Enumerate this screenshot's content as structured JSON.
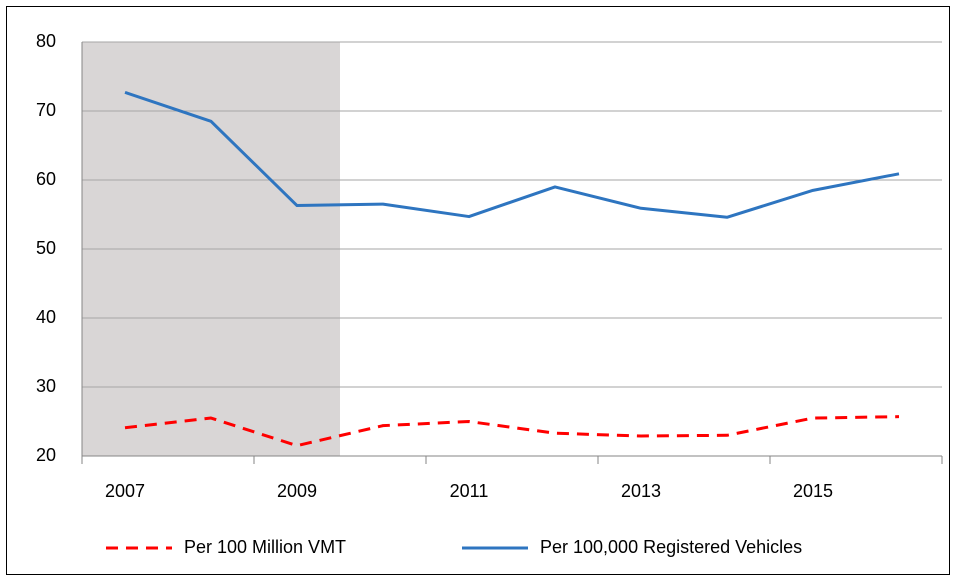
{
  "chart_data": {
    "type": "line",
    "categories": [
      "2007",
      null,
      "2009",
      null,
      "2011",
      null,
      "2013",
      null,
      "2015",
      null
    ],
    "series": [
      {
        "name": "Per 100 Million VMT",
        "color": "#ff0000",
        "dash": true,
        "values": [
          24.1,
          25.5,
          21.5,
          24.4,
          25.0,
          23.3,
          22.9,
          23.0,
          25.5,
          25.7
        ]
      },
      {
        "name": "Per 100,000 Registered Vehicles",
        "color": "#2e75c0",
        "dash": false,
        "values": [
          72.7,
          68.5,
          56.3,
          56.5,
          54.7,
          59.0,
          55.9,
          54.6,
          58.5,
          60.9
        ]
      }
    ],
    "ylim": [
      20,
      80
    ],
    "yticks": [
      20,
      30,
      40,
      50,
      60,
      70,
      80
    ],
    "grid": true,
    "legend": "bottom"
  }
}
